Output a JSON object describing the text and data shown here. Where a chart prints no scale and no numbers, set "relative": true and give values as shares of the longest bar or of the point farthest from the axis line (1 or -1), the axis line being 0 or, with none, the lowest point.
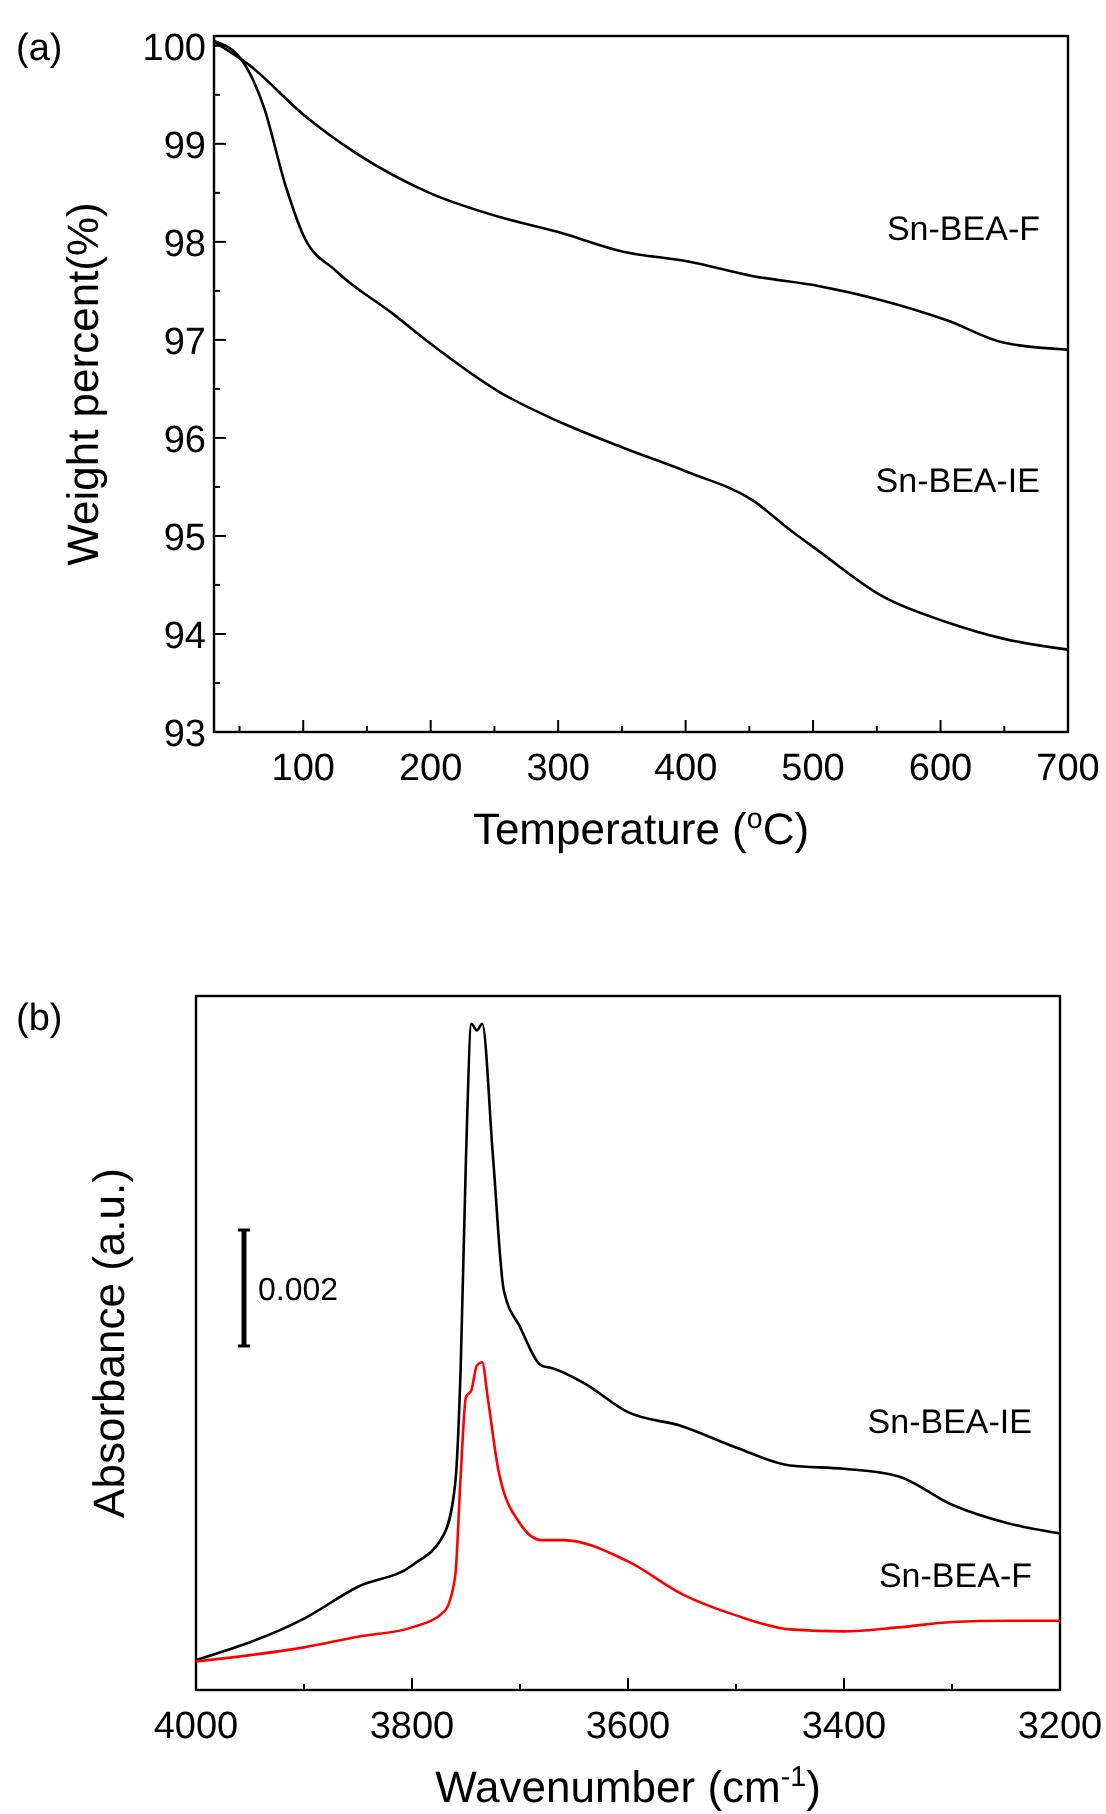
{
  "chart_data": [
    {
      "type": "line",
      "title": "(a)",
      "xlabel": "Temperature ($^{o}$C)",
      "ylabel": "Weight percent(%)",
      "xlim": [
        30,
        700
      ],
      "ylim": [
        93,
        100.1
      ],
      "xticks": [
        {
          "value": 50,
          "label": null
        },
        100,
        {
          "value": 150,
          "label": null
        },
        200,
        {
          "value": 250,
          "label": null
        },
        300,
        {
          "value": 350,
          "label": null
        },
        400,
        {
          "value": 450,
          "label": null
        },
        500,
        {
          "value": 550,
          "label": null
        },
        600,
        {
          "value": 650,
          "label": null
        },
        700
      ],
      "yticks": [
        93,
        {
          "value": 93.5,
          "label": null
        },
        94,
        {
          "value": 94.5,
          "label": null
        },
        95,
        {
          "value": 95.5,
          "label": null
        },
        96,
        {
          "value": 96.5,
          "label": null
        },
        97,
        {
          "value": 97.5,
          "label": null
        },
        98,
        {
          "value": 98.5,
          "label": null
        },
        99,
        {
          "value": 99.5,
          "label": null
        },
        100
      ],
      "series": [
        {
          "name": "Sn-BEA-F",
          "color": "#000000",
          "x": [
            30,
            58,
            100,
            142,
            199,
            255,
            300,
            351,
            402,
            453,
            504,
            555,
            605,
            650,
            700
          ],
          "values": [
            100.04,
            99.8,
            99.3,
            98.9,
            98.5,
            98.25,
            98.1,
            97.9,
            97.8,
            97.65,
            97.55,
            97.4,
            97.2,
            96.97,
            96.9
          ]
        },
        {
          "name": "Sn-BEA-IE",
          "color": "#000000",
          "x": [
            30,
            52,
            69,
            86,
            100,
            126,
            171,
            199,
            255,
            300,
            351,
            402,
            453,
            481,
            504,
            555,
            605,
            650,
            700
          ],
          "values": [
            100.05,
            99.85,
            99.38,
            98.58,
            98.07,
            97.7,
            97.26,
            96.97,
            96.46,
            96.17,
            95.9,
            95.65,
            95.36,
            95.07,
            94.85,
            94.38,
            94.12,
            93.95,
            93.84
          ]
        }
      ]
    },
    {
      "type": "line",
      "title": "(b)",
      "xlabel": "Wavenumber (cm$^{-1}$)",
      "ylabel": "Absorbance (a.u.)",
      "relative": true,
      "xlim": [
        4000,
        3200
      ],
      "xticks": [
        4000,
        {
          "value": 3900,
          "label": null
        },
        3800,
        {
          "value": 3700,
          "label": null
        },
        3600,
        {
          "value": 3500,
          "label": null
        },
        3400,
        {
          "value": 3300,
          "label": null
        },
        3200
      ],
      "annotations": [
        "0.002"
      ],
      "series": [
        {
          "name": "Sn-BEA-IE",
          "color": "#000000",
          "x": [
            4000,
            3900,
            3850,
            3800,
            3770,
            3760,
            3755,
            3750,
            3745,
            3740,
            3735,
            3725,
            3715,
            3700,
            3680,
            3670,
            3640,
            3600,
            3550,
            3500,
            3450,
            3400,
            3350,
            3300,
            3250,
            3200
          ],
          "values": [
            0.045,
            0.107,
            0.155,
            0.187,
            0.235,
            0.31,
            0.48,
            0.8,
            1.0,
            0.99,
            1.0,
            0.8,
            0.6,
            0.545,
            0.487,
            0.483,
            0.46,
            0.417,
            0.396,
            0.364,
            0.337,
            0.332,
            0.321,
            0.278,
            0.251,
            0.235
          ]
        },
        {
          "name": "Sn-BEA-F",
          "color": "#ff0000",
          "x": [
            4000,
            3900,
            3850,
            3800,
            3770,
            3760,
            3755,
            3750,
            3745,
            3740,
            3735,
            3730,
            3720,
            3700,
            3680,
            3660,
            3600,
            3550,
            3500,
            3450,
            3400,
            3350,
            3300,
            3250,
            3200
          ],
          "values": [
            0.043,
            0.064,
            0.08,
            0.094,
            0.118,
            0.171,
            0.32,
            0.44,
            0.45,
            0.487,
            0.492,
            0.44,
            0.33,
            0.25,
            0.225,
            0.225,
            0.193,
            0.144,
            0.112,
            0.091,
            0.088,
            0.094,
            0.102,
            0.104,
            0.104
          ]
        }
      ]
    }
  ]
}
